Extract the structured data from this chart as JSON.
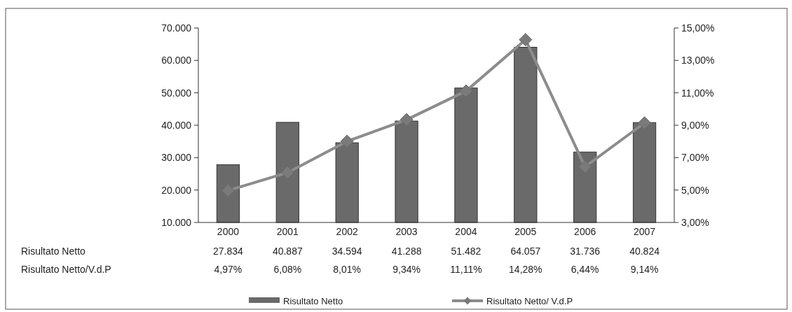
{
  "chart_data": {
    "type": "bar",
    "categories": [
      "2000",
      "2001",
      "2002",
      "2003",
      "2004",
      "2005",
      "2006",
      "2007"
    ],
    "series": [
      {
        "name": "Risultato Netto",
        "color": "#6a6a6a",
        "values": [
          27834,
          40887,
          34594,
          41288,
          51482,
          64057,
          31736,
          40824
        ],
        "value_labels": [
          "27.834",
          "40.887",
          "34.594",
          "41.288",
          "51.482",
          "64.057",
          "31.736",
          "40.824"
        ]
      },
      {
        "name": "Risultato Netto/ V.d.P",
        "type": "line",
        "axis": "y2",
        "color": "#8c8c8c",
        "marker": "diamond",
        "values": [
          4.97,
          6.08,
          8.01,
          9.34,
          11.11,
          14.28,
          6.44,
          9.14
        ],
        "value_labels": [
          "4,97%",
          "6,08%",
          "8,01%",
          "9,34%",
          "11,11%",
          "14,28%",
          "6,44%",
          "9,14%"
        ]
      }
    ],
    "annotations": [
      "Risultato Netto",
      "Risultato Netto/V.d.P"
    ],
    "ylim": [
      10000,
      70000
    ],
    "yticks": [
      {
        "value": 10000,
        "label": "10.000"
      },
      {
        "value": 20000,
        "label": "20.000"
      },
      {
        "value": 30000,
        "label": "30.000"
      },
      {
        "value": 40000,
        "label": "40.000"
      },
      {
        "value": 50000,
        "label": "50.000"
      },
      {
        "value": 60000,
        "label": "60.000"
      },
      {
        "value": 70000,
        "label": "70.000"
      }
    ],
    "y2lim": [
      3,
      15
    ],
    "y2ticks": [
      {
        "value": 3,
        "label": "3,00%"
      },
      {
        "value": 5,
        "label": "5,00%"
      },
      {
        "value": 7,
        "label": "7,00%"
      },
      {
        "value": 9,
        "label": "9,00%"
      },
      {
        "value": 11,
        "label": "11,00%"
      },
      {
        "value": 13,
        "label": "13,00%"
      },
      {
        "value": 15,
        "label": "15,00%"
      }
    ],
    "legend": "bottom",
    "grid": false
  }
}
